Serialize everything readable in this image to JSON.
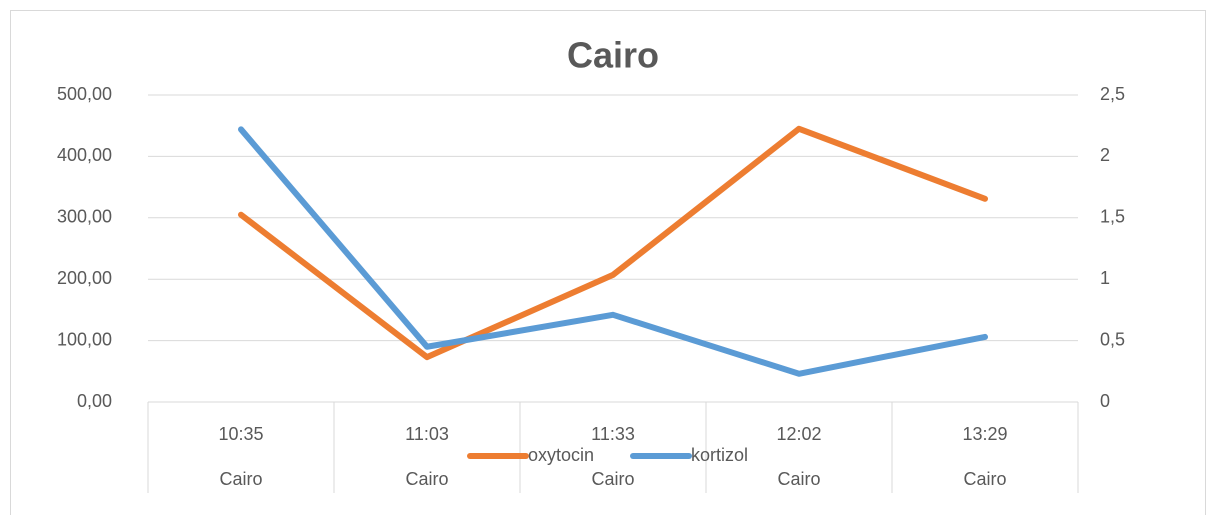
{
  "chart_data": {
    "type": "line",
    "title": "Cairo",
    "categories": [
      "10:35",
      "11:03",
      "11:33",
      "12:02",
      "13:29"
    ],
    "category_groups": [
      "Cairo",
      "Cairo",
      "Cairo",
      "Cairo",
      "Cairo"
    ],
    "series": [
      {
        "name": "oxytocin",
        "color": "#ed7d31",
        "values": [
          305,
          73,
          207,
          445,
          331
        ]
      },
      {
        "name": "kortizol",
        "color": "#5b9bd5",
        "axis": "y2",
        "values": [
          2.22,
          0.45,
          0.71,
          0.23,
          0.53
        ]
      }
    ],
    "ylim": [
      0,
      500
    ],
    "yticks": [
      {
        "value": 0,
        "label": "0,00"
      },
      {
        "value": 100,
        "label": "100,00"
      },
      {
        "value": 200,
        "label": "200,00"
      },
      {
        "value": 300,
        "label": "300,00"
      },
      {
        "value": 400,
        "label": "400,00"
      },
      {
        "value": 500,
        "label": "500,00"
      }
    ],
    "y2lim": [
      0,
      2.5
    ],
    "y2ticks": [
      0,
      {
        "value": 0.5,
        "label": "0,5"
      },
      1,
      {
        "value": 1.5,
        "label": "1,5"
      },
      2,
      {
        "value": 2.5,
        "label": "2,5"
      }
    ],
    "grid": true,
    "legend": "bottom"
  }
}
